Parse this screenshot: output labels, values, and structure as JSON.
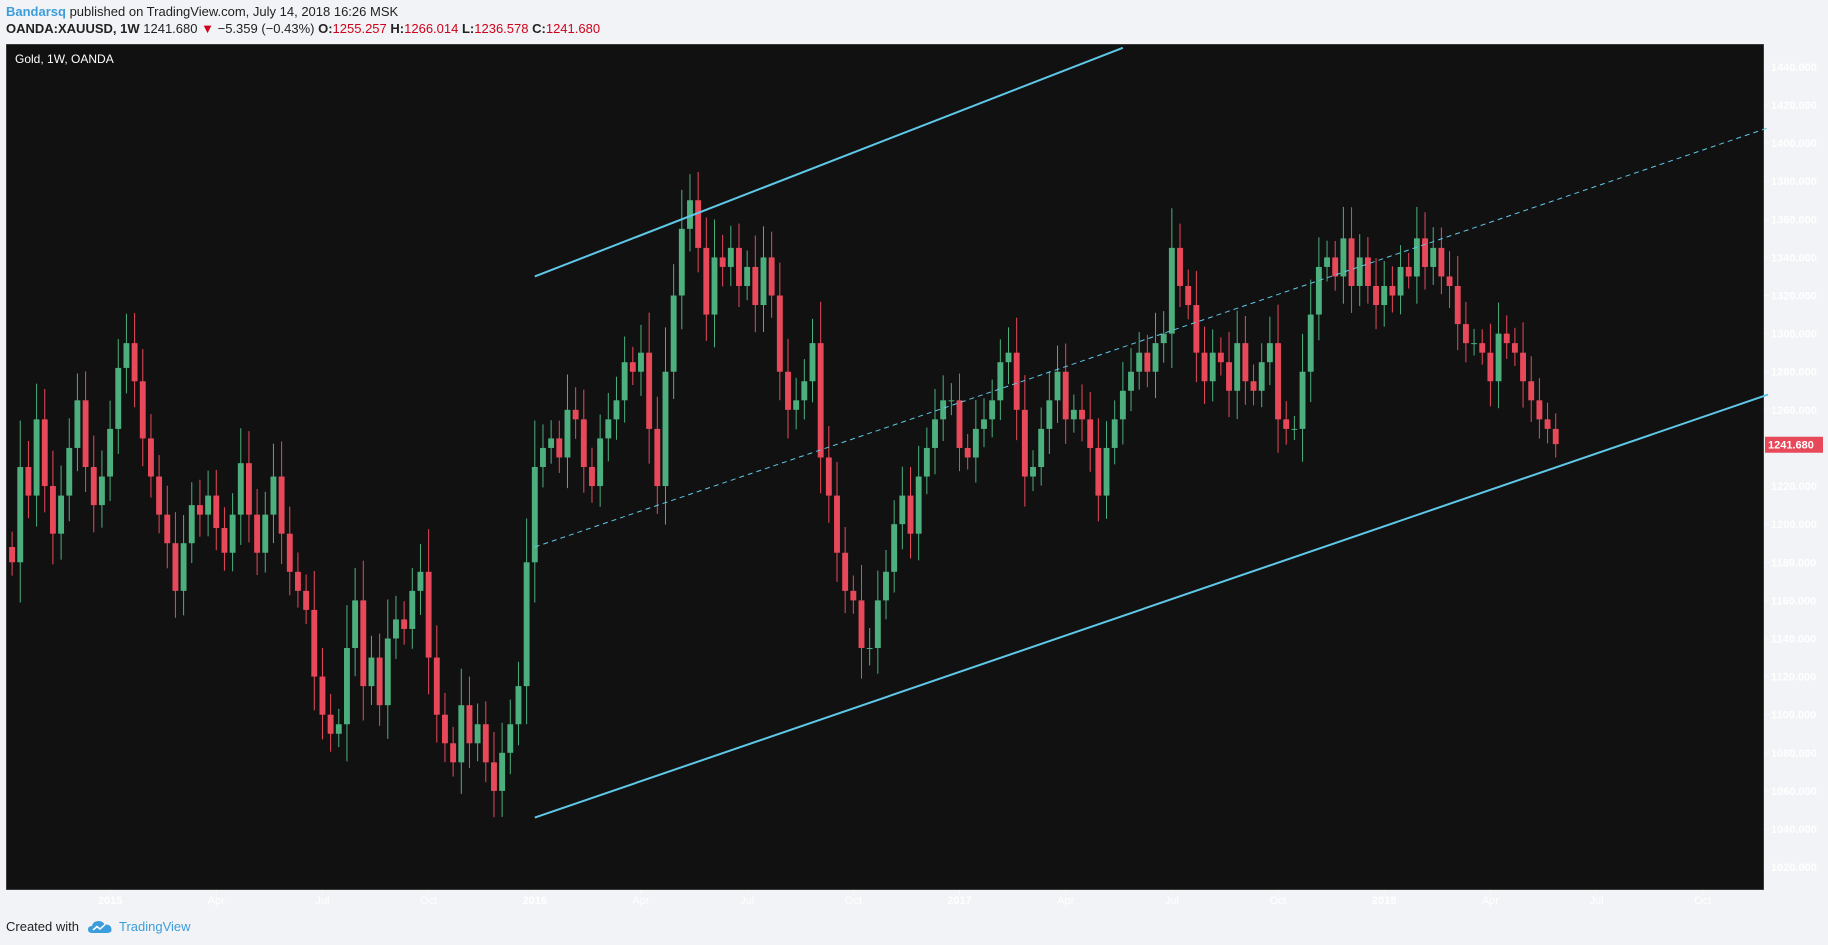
{
  "header": {
    "author": "Bandarsq",
    "published": " published on TradingView.com, July 14, 2018 16:26 MSK",
    "symbol": "OANDA:XAUUSD, 1W",
    "last": "1241.680",
    "change_arrow": "▼",
    "change": "−5.359 (−0.43%)",
    "o_label": "O:",
    "o": "1255.257",
    "h_label": "H:",
    "h": "1266.014",
    "l_label": "L:",
    "l": "1236.578",
    "c_label": "C:",
    "c": "1241.680"
  },
  "footer": {
    "created_with": "Created with",
    "brand": "TradingView",
    "logo_icon": "tradingview-cloud-icon"
  },
  "colors": {
    "background": "#111111",
    "up": "#4caf7d",
    "down": "#e8495a",
    "trendline": "#5fc8e8",
    "price_badge": "#e8495a",
    "axis_text": "#ffffff"
  },
  "chart_data": {
    "type": "candlestick",
    "title": "Gold, 1W, OANDA",
    "timeframe": "1W",
    "ylim": [
      1008,
      1452
    ],
    "yticks": [
      "1020.000",
      "1040.000",
      "1060.000",
      "1080.000",
      "1100.000",
      "1120.000",
      "1140.000",
      "1160.000",
      "1180.000",
      "1200.000",
      "1220.000",
      "1240.000",
      "1260.000",
      "1280.000",
      "1300.000",
      "1320.000",
      "1340.000",
      "1360.000",
      "1380.000",
      "1400.000",
      "1420.000",
      "1440.000"
    ],
    "xticks": [
      {
        "label": "2015",
        "week": 12,
        "bold": true
      },
      {
        "label": "Apr",
        "week": 25
      },
      {
        "label": "Jul",
        "week": 38
      },
      {
        "label": "Oct",
        "week": 51
      },
      {
        "label": "2016",
        "week": 64,
        "bold": true
      },
      {
        "label": "Apr",
        "week": 77
      },
      {
        "label": "Jul",
        "week": 90
      },
      {
        "label": "Oct",
        "week": 103
      },
      {
        "label": "2017",
        "week": 116,
        "bold": true
      },
      {
        "label": "Apr",
        "week": 129
      },
      {
        "label": "Jul",
        "week": 142
      },
      {
        "label": "Oct",
        "week": 155
      },
      {
        "label": "2018",
        "week": 168,
        "bold": true
      },
      {
        "label": "Apr",
        "week": 181
      },
      {
        "label": "Jul",
        "week": 194
      },
      {
        "label": "Oct",
        "week": 207
      }
    ],
    "x_max_week": 215,
    "last_price": "1241.680",
    "closes": [
      1180,
      1230,
      1215,
      1255,
      1220,
      1195,
      1215,
      1240,
      1265,
      1230,
      1210,
      1225,
      1250,
      1282,
      1295,
      1275,
      1245,
      1225,
      1205,
      1190,
      1165,
      1190,
      1210,
      1205,
      1215,
      1198,
      1185,
      1205,
      1232,
      1205,
      1185,
      1205,
      1225,
      1195,
      1175,
      1165,
      1155,
      1120,
      1100,
      1090,
      1095,
      1135,
      1160,
      1115,
      1130,
      1105,
      1140,
      1150,
      1145,
      1165,
      1175,
      1130,
      1100,
      1085,
      1075,
      1105,
      1085,
      1095,
      1075,
      1060,
      1080,
      1095,
      1115,
      1180,
      1230,
      1240,
      1245,
      1235,
      1260,
      1255,
      1230,
      1220,
      1245,
      1255,
      1265,
      1285,
      1280,
      1290,
      1250,
      1220,
      1280,
      1320,
      1355,
      1370,
      1345,
      1310,
      1340,
      1335,
      1345,
      1325,
      1335,
      1315,
      1340,
      1320,
      1280,
      1260,
      1265,
      1275,
      1295,
      1235,
      1215,
      1185,
      1165,
      1160,
      1135,
      1135,
      1160,
      1175,
      1200,
      1215,
      1195,
      1225,
      1240,
      1255,
      1265,
      1265,
      1240,
      1235,
      1250,
      1255,
      1265,
      1285,
      1290,
      1260,
      1225,
      1230,
      1250,
      1265,
      1280,
      1255,
      1260,
      1255,
      1240,
      1215,
      1240,
      1255,
      1270,
      1280,
      1290,
      1280,
      1295,
      1300,
      1345,
      1325,
      1315,
      1290,
      1275,
      1290,
      1285,
      1270,
      1295,
      1275,
      1270,
      1285,
      1295,
      1255,
      1250,
      1250,
      1280,
      1310,
      1335,
      1340,
      1330,
      1350,
      1325,
      1340,
      1325,
      1315,
      1325,
      1320,
      1335,
      1330,
      1350,
      1335,
      1345,
      1330,
      1325,
      1305,
      1295,
      1295,
      1290,
      1275,
      1300,
      1295,
      1290,
      1275,
      1265,
      1255,
      1250,
      1242
    ],
    "trendlines": [
      {
        "name": "upper-channel-line",
        "from": [
          64,
          1330
        ],
        "to": [
          136,
          1450
        ],
        "style": "solid"
      },
      {
        "name": "middle-channel-line",
        "from": [
          64,
          1188
        ],
        "to": [
          215,
          1408
        ],
        "style": "dashed"
      },
      {
        "name": "lower-channel-line",
        "from": [
          64,
          1046
        ],
        "to": [
          215,
          1268
        ],
        "style": "solid"
      }
    ]
  }
}
